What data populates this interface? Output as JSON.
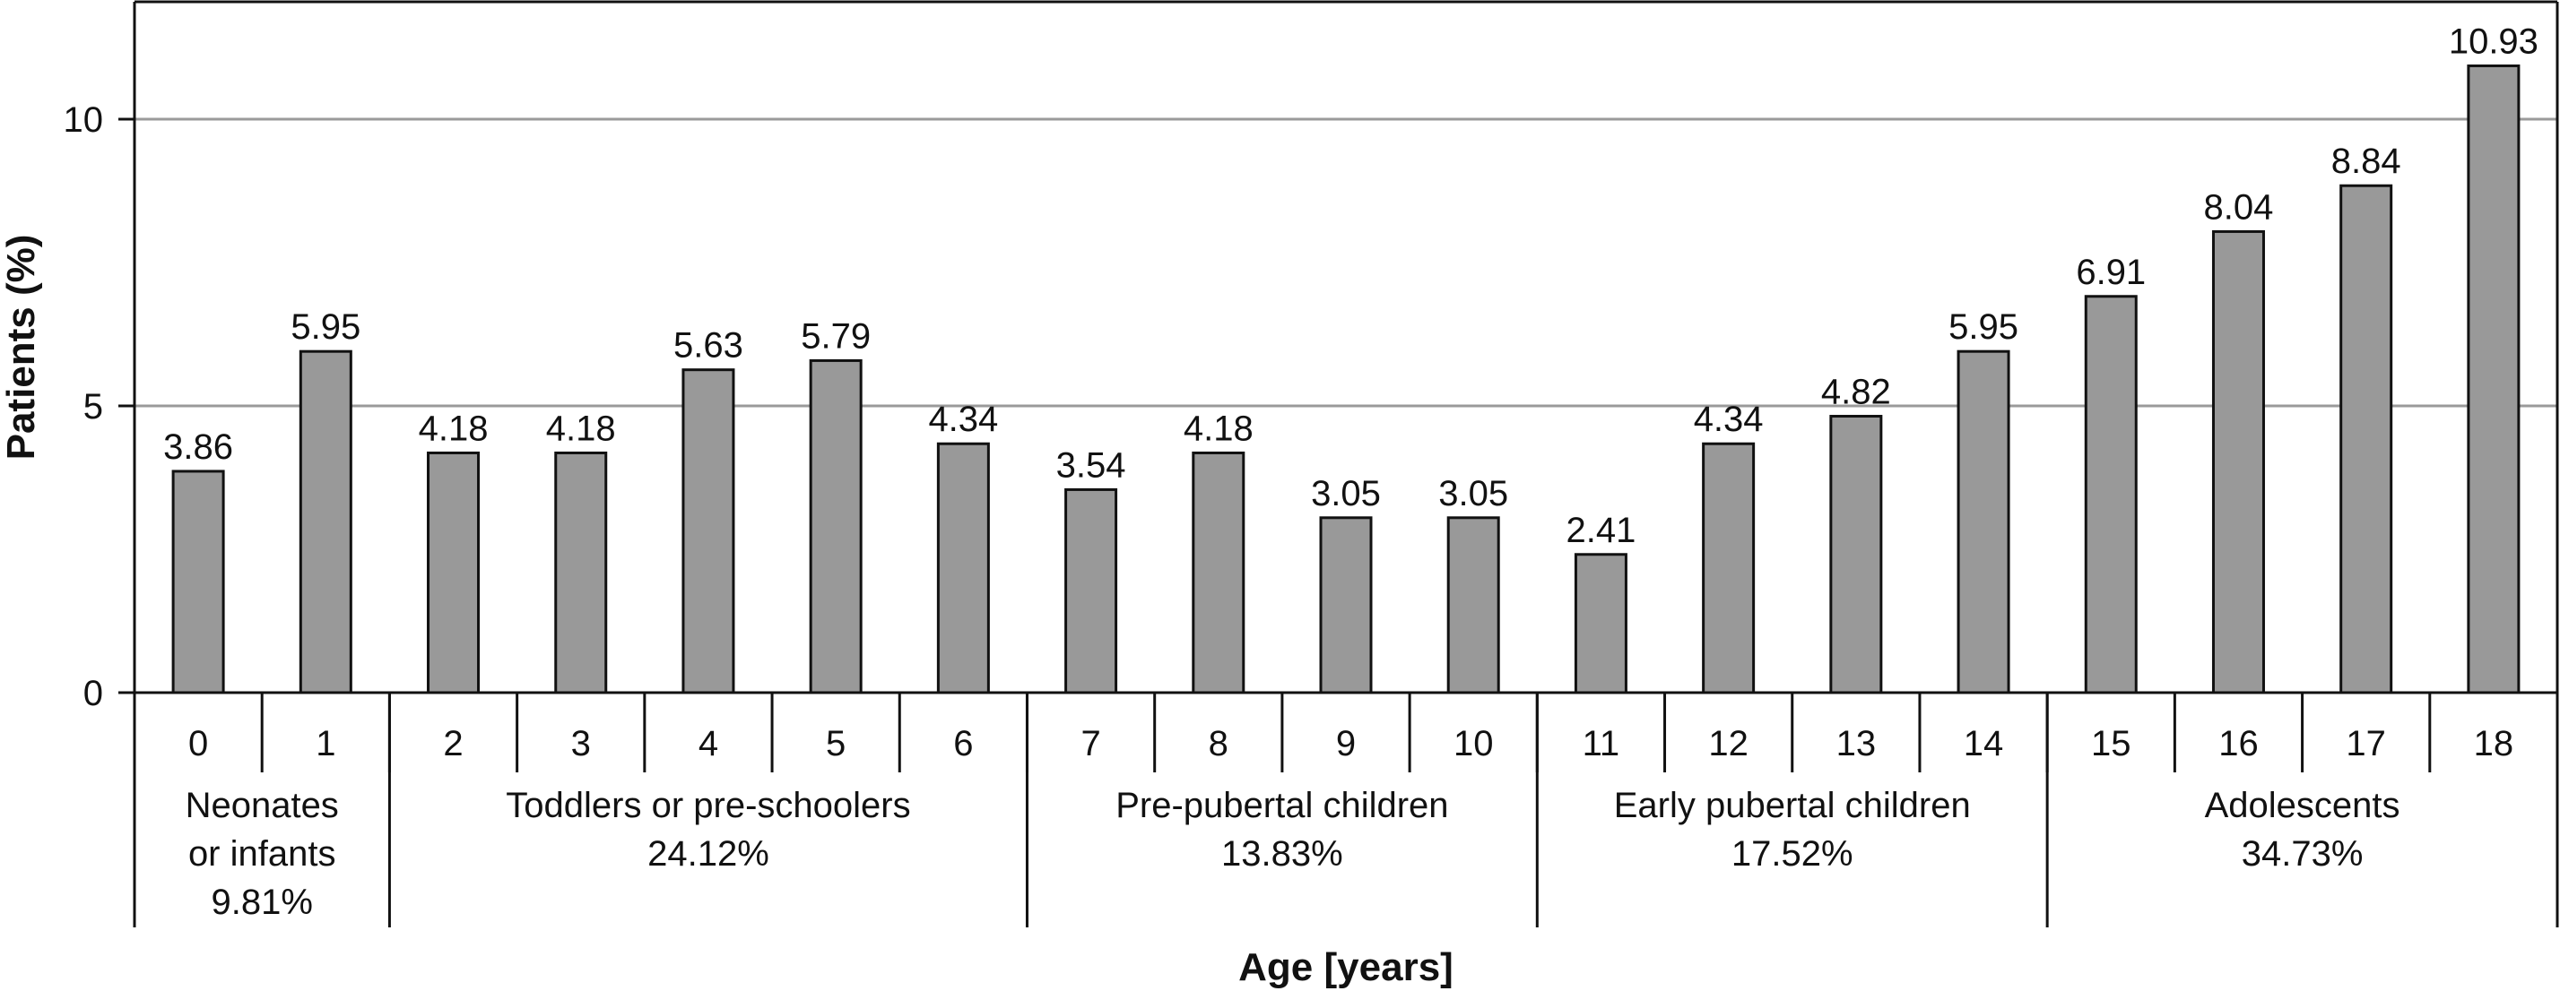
{
  "chart_data": {
    "type": "bar",
    "title": "",
    "xlabel": "Age [years]",
    "ylabel": "Patients (%)",
    "ylim": [
      0,
      12
    ],
    "yticks": [
      0,
      5,
      10
    ],
    "grid": true,
    "categories": [
      "0",
      "1",
      "2",
      "3",
      "4",
      "5",
      "6",
      "7",
      "8",
      "9",
      "10",
      "11",
      "12",
      "13",
      "14",
      "15",
      "16",
      "17",
      "18"
    ],
    "values": [
      3.86,
      5.95,
      4.18,
      4.18,
      5.63,
      5.79,
      4.34,
      3.54,
      4.18,
      3.05,
      3.05,
      2.41,
      4.34,
      4.82,
      5.95,
      6.91,
      8.04,
      8.84,
      10.93
    ],
    "value_labels": [
      "3.86",
      "5.95",
      "4.18",
      "4.18",
      "5.63",
      "5.79",
      "4.34",
      "3.54",
      "4.18",
      "3.05",
      "3.05",
      "2.41",
      "4.34",
      "4.82",
      "5.95",
      "6.91",
      "8.04",
      "8.84",
      "10.93"
    ],
    "groups": [
      {
        "lines": [
          "Neonates",
          "or infants",
          "9.81%"
        ],
        "start": 0,
        "end": 1
      },
      {
        "lines": [
          "Toddlers or pre-schoolers",
          "24.12%"
        ],
        "start": 2,
        "end": 6
      },
      {
        "lines": [
          "Pre-pubertal children",
          "13.83%"
        ],
        "start": 7,
        "end": 10
      },
      {
        "lines": [
          "Early pubertal children",
          "17.52%"
        ],
        "start": 11,
        "end": 14
      },
      {
        "lines": [
          "Adolescents",
          "34.73%"
        ],
        "start": 15,
        "end": 18
      }
    ],
    "colors": {
      "bar_fill": "#999999",
      "bar_stroke": "#111111",
      "grid": "#9a9a9a",
      "axis": "#111111"
    }
  }
}
